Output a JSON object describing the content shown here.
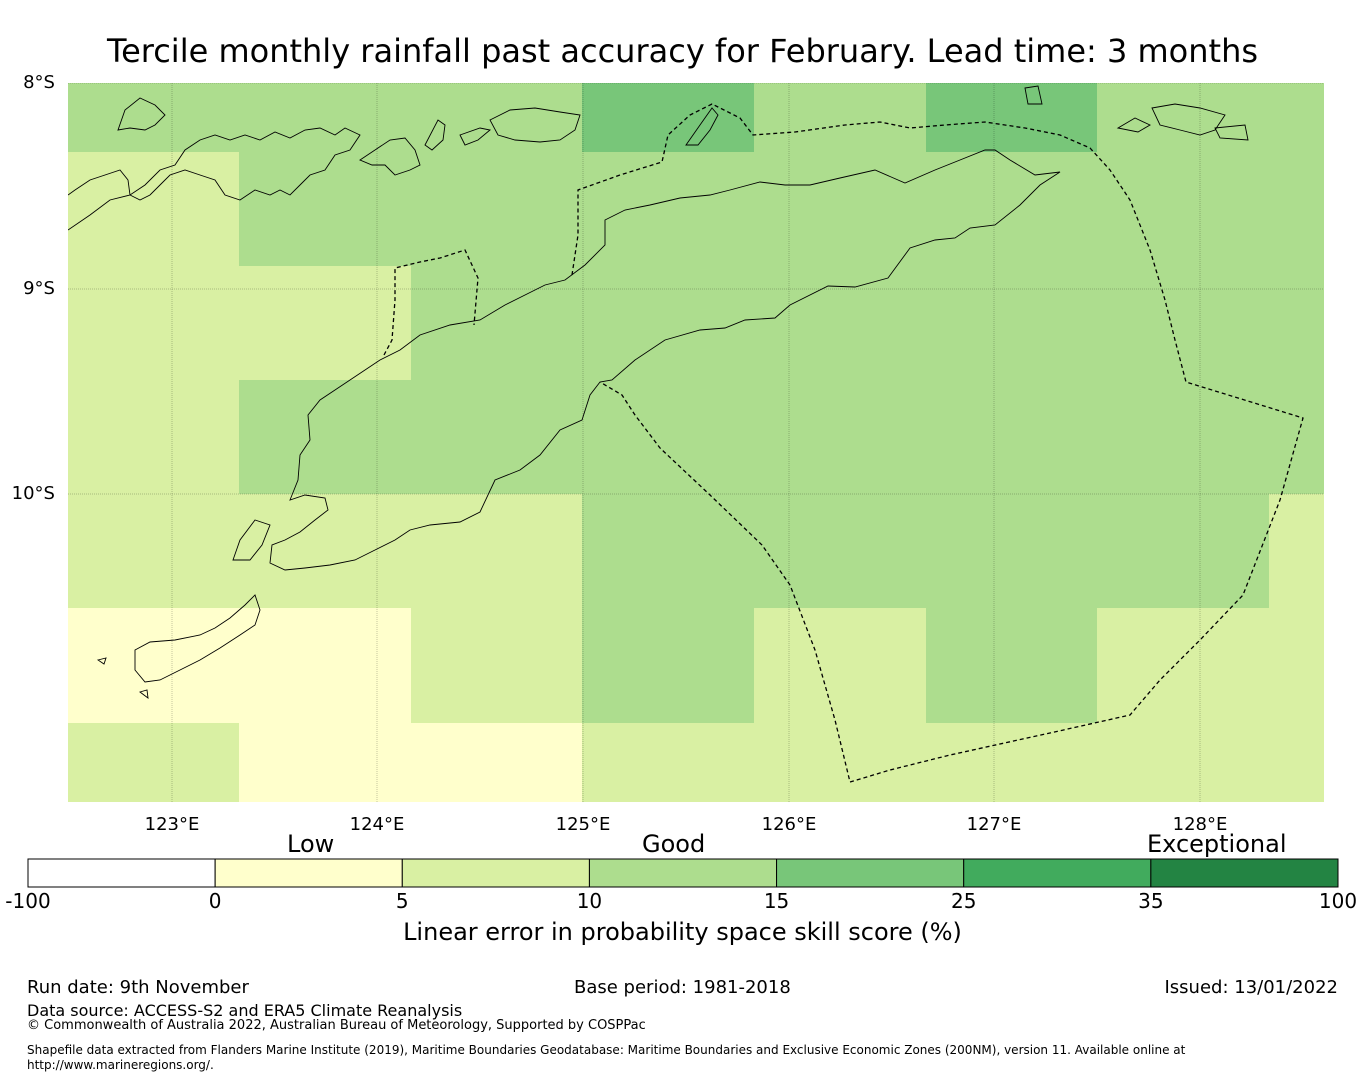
{
  "title": "Tercile monthly rainfall past accuracy for February. Lead time: 3 months",
  "map": {
    "lat_labels": [
      "8°S",
      "9°S",
      "10°S"
    ],
    "lon_labels": [
      "123°E",
      "124°E",
      "125°E",
      "126°E",
      "127°E",
      "128°E"
    ],
    "colors": {
      "c0_5": "#ffffcc",
      "c5_10": "#d9f0a3",
      "c10_15": "#addd8e",
      "c15_25": "#78c679",
      "c25_35": "#41ab5d",
      "c35_100": "#238443"
    }
  },
  "colorbar": {
    "category_labels": [
      "Low",
      "Good",
      "Exceptional"
    ],
    "ticks": [
      "-100",
      "0",
      "5",
      "10",
      "15",
      "25",
      "35",
      "100"
    ],
    "colors": [
      "#ffffff",
      "#ffffcc",
      "#d9f0a3",
      "#addd8e",
      "#78c679",
      "#41ab5d",
      "#238443"
    ],
    "title": "Linear error in probability space skill score (%)"
  },
  "footer": {
    "run_date": "Run date: 9th November",
    "base_period": "Base period: 1981-2018",
    "issued": "Issued: 13/01/2022",
    "data_source": "Data source: ACCESS-S2 and ERA5 Climate Reanalysis",
    "copyright": "© Commonwealth of Australia 2022, Australian Bureau of Meteorology, Supported by COSPPac",
    "shapefile": "Shapefile data extracted from Flanders Marine Institute (2019), Maritime Boundaries Geodatabase: Maritime Boundaries and Exclusive Economic Zones (200NM), version 11. Available online at http://www.marineregions.org/."
  }
}
